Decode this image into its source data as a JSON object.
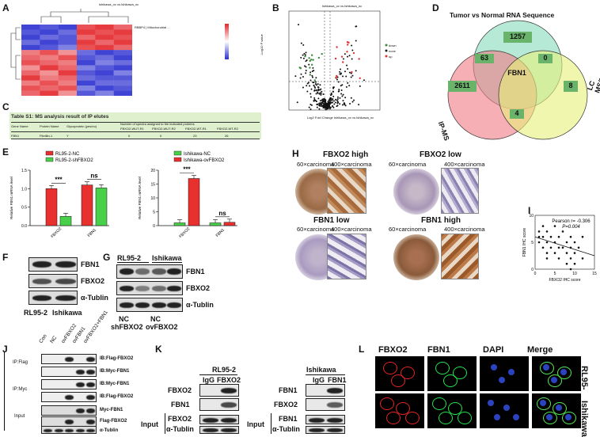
{
  "panels": {
    "A": "A",
    "B": "B",
    "C": "C",
    "D": "D",
    "E": "E",
    "F": "F",
    "G": "G",
    "H": "H",
    "I": "I",
    "J": "J",
    "K": "K",
    "L": "L"
  },
  "heatmap": {
    "title": "Ishikawa_ov vs.Ishikawa_nc",
    "colors": {
      "high": "#e3262b",
      "mid": "#ffffff",
      "low": "#2b2fd0"
    },
    "matrix": [
      [
        -0.9,
        -0.8,
        -0.9,
        0.8,
        0.9,
        0.7
      ],
      [
        -0.8,
        -0.9,
        -0.7,
        0.9,
        0.8,
        0.9
      ],
      [
        -0.9,
        -0.7,
        -0.8,
        0.7,
        0.9,
        0.8
      ],
      [
        -0.7,
        -0.9,
        -0.8,
        0.9,
        0.7,
        0.9
      ],
      [
        -0.9,
        -0.8,
        -0.6,
        0.8,
        0.9,
        0.7
      ],
      [
        0.6,
        0.8,
        0.5,
        -0.7,
        -0.9,
        -0.8
      ],
      [
        0.7,
        0.6,
        0.8,
        -0.8,
        -0.7,
        -0.9
      ],
      [
        0.8,
        0.7,
        0.6,
        -0.9,
        -0.6,
        -0.7
      ],
      [
        0.5,
        0.9,
        0.7,
        -0.6,
        -0.8,
        -0.9
      ],
      [
        0.7,
        0.5,
        0.9,
        -0.8,
        -0.9,
        -0.6
      ],
      [
        0.9,
        0.6,
        0.7,
        -0.7,
        -0.8,
        -0.8
      ],
      [
        0.6,
        0.8,
        0.6,
        -0.9,
        -0.7,
        -0.7
      ],
      [
        0.8,
        0.7,
        0.8,
        -0.6,
        -0.9,
        -0.8
      ],
      [
        0.7,
        0.9,
        0.5,
        -0.8,
        -0.6,
        -0.9
      ]
    ]
  },
  "volcano": {
    "title": "Ishikawa_ov vs.Ishikawa_nc",
    "ylabel": "-Log10 P value",
    "xlabel": "Log2 Fold Change Ishikawa_ov vs.Ishikawa_nc",
    "legend": [
      "down",
      "none",
      "up"
    ]
  },
  "table": {
    "title": "Table S1: MS analysis result of IP elutes",
    "headers": [
      "Gene Name",
      "Protein Name",
      "Glycoprotein (yes/no)",
      "Number of spectra assigned to the indicated proteins",
      "FBXO2-WUT-R1",
      "FBXO2-WUT-R2",
      "FBXO2-WT-R1",
      "FBXO2-WT-R2"
    ],
    "row": [
      "FBN1",
      "Fibrillin-1",
      "Y",
      "0",
      "0",
      "23",
      "26"
    ]
  },
  "venn": {
    "title": "Tumor vs Normal RNA Sequence",
    "labels": [
      "IP-MS",
      "LC MS/MS"
    ],
    "counts": {
      "top_only": "1257",
      "left_only": "2611",
      "right_only": "8",
      "top_left": "63",
      "top_right": "0",
      "left_right": "4",
      "center": "FBN1"
    }
  },
  "chart_data": [
    {
      "type": "bar",
      "title": "",
      "ylabel": "Relative FBN1 mRNA level",
      "categories": [
        "FBXO2",
        "FBN1"
      ],
      "series": [
        {
          "name": "RL95-2-NC",
          "values": [
            1.0,
            1.1
          ]
        },
        {
          "name": "RL95-2-shFBXO2",
          "values": [
            0.25,
            1.02
          ]
        }
      ],
      "ylim": [
        0,
        1.5
      ],
      "yticks": [
        "0.0",
        "0.5",
        "1.0",
        "1.5"
      ],
      "annotations": [
        "***",
        "ns"
      ]
    },
    {
      "type": "bar",
      "title": "",
      "ylabel": "Relative FBN1 mRNA level",
      "categories": [
        "FBXO2",
        "FBN1"
      ],
      "series": [
        {
          "name": "Ishikawa-NC",
          "values": [
            1.0,
            1.0
          ]
        },
        {
          "name": "Ishikawa-ovFBXO2",
          "values": [
            17.0,
            1.2
          ]
        }
      ],
      "ylim": [
        0,
        20
      ],
      "yticks": [
        "0",
        "5",
        "10",
        "15",
        "20"
      ],
      "annotations": [
        "***",
        "ns"
      ]
    },
    {
      "type": "scatter",
      "title": "",
      "xlabel": "FBXO2 IHC score",
      "ylabel": "FBN1 IHC score",
      "xlim": [
        0,
        15
      ],
      "ylim": [
        0,
        10
      ],
      "xticks": [
        "0",
        "5",
        "10",
        "15"
      ],
      "yticks": [
        "0",
        "5",
        "10"
      ],
      "points": [
        [
          1,
          7
        ],
        [
          1,
          6
        ],
        [
          1,
          5
        ],
        [
          2,
          8
        ],
        [
          2,
          6
        ],
        [
          2,
          4
        ],
        [
          3,
          7
        ],
        [
          3,
          5
        ],
        [
          3,
          3
        ],
        [
          4,
          6
        ],
        [
          4,
          4
        ],
        [
          5,
          8
        ],
        [
          5,
          5
        ],
        [
          5,
          3
        ],
        [
          6,
          6
        ],
        [
          6,
          2
        ],
        [
          7,
          4
        ],
        [
          7,
          7
        ],
        [
          8,
          5
        ],
        [
          8,
          3
        ],
        [
          8,
          1
        ],
        [
          9,
          6
        ],
        [
          9,
          4
        ],
        [
          9,
          2
        ],
        [
          10,
          5
        ],
        [
          10,
          3
        ],
        [
          10,
          1
        ],
        [
          11,
          4
        ],
        [
          12,
          2
        ],
        [
          12,
          6
        ],
        [
          3,
          2
        ],
        [
          6,
          4
        ],
        [
          9,
          0
        ]
      ],
      "trend": [
        [
          0,
          6.0
        ],
        [
          15,
          2.5
        ]
      ],
      "annotations": [
        "Pearson r= -0.306",
        "P=0.004"
      ]
    }
  ],
  "panelE": {
    "sig1": "***",
    "sig2": "ns",
    "sig3": "***",
    "sig4": "ns",
    "leg1": "RL95-2-NC",
    "leg2": "RL95-2-shFBXO2",
    "leg3": "Ishikawa-NC",
    "leg4": "Ishikawa-ovFBXO2",
    "ylab": "Relative FBN1 mRNA level",
    "xcat1": "FBXO2",
    "xcat2": "FBN1"
  },
  "panelF": {
    "bands": [
      "FBN1",
      "FBXO2",
      "α-Tublin"
    ],
    "cells": [
      "RL95-2",
      "Ishikawa"
    ]
  },
  "panelG": {
    "cells": [
      "RL95-2",
      "Ishikawa"
    ],
    "bands": [
      "FBN1",
      "FBXO2",
      "α-Tublin"
    ],
    "lanes": [
      "NC",
      "shFBXO2",
      "NC",
      "ovFBXO2"
    ]
  },
  "panelH": {
    "t1": "FBXO2 high",
    "t2": "FBXO2 low",
    "t3": "FBN1 low",
    "t4": "FBN1 high",
    "m60": "60×carcinoma",
    "m400": "400×carcinoma"
  },
  "panelJ": {
    "lanes": [
      "Con",
      "NC",
      "ovFBXO2",
      "ovFBN1",
      "ovFBXO2+FBN1"
    ],
    "groups": [
      "IP:Flag",
      "IP:Myc",
      "Input"
    ],
    "bands": [
      "IB:Flag-FBXO2",
      "IB:Myc-FBN1",
      "IB:Myc-FBN1",
      "IB:Flag-FBXO2",
      "Myc-FBN1",
      "Flag-FBXO2",
      "α-Tublin"
    ]
  },
  "panelK": {
    "left": {
      "cell": "RL95-2",
      "lanes": [
        "IgG",
        "FBXO2"
      ],
      "bands": [
        "FBXO2",
        "FBN1",
        "FBXO2",
        "α-Tublin"
      ]
    },
    "right": {
      "cell": "Ishikawa",
      "lanes": [
        "IgG",
        "FBN1"
      ],
      "bands": [
        "FBN1",
        "FBXO2",
        "FBN1",
        "α-Tublin"
      ]
    },
    "input": "Input"
  },
  "panelL": {
    "cols": [
      "FBXO2",
      "FBN1",
      "DAPI",
      "Merge"
    ],
    "rows": [
      "RL95-2",
      "Ishikawa"
    ]
  }
}
